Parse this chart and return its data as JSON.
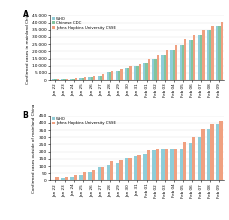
{
  "panel_A": {
    "dates": [
      "Jan 22",
      "Jan 23",
      "Jan 24",
      "Jan 25",
      "Jan 26",
      "Jan 27",
      "Jan 28",
      "Jan 29",
      "Jan 30",
      "Jan 31",
      "Feb 01",
      "Feb 02",
      "Feb 03",
      "Feb 04",
      "Feb 05",
      "Feb 06",
      "Feb 07",
      "Feb 08",
      "Feb 09"
    ],
    "WHO": [
      548,
      643,
      920,
      1406,
      2075,
      2877,
      5578,
      6166,
      8234,
      9927,
      11948,
      14549,
      17391,
      20630,
      24633,
      28018,
      31481,
      34886,
      37558
    ],
    "ChineseCDC": [
      548,
      643,
      920,
      1406,
      2075,
      2877,
      5578,
      6166,
      8234,
      9927,
      11948,
      14549,
      17391,
      20630,
      24633,
      28018,
      31481,
      34886,
      37558
    ],
    "JHU": [
      580,
      845,
      1317,
      1985,
      2798,
      4593,
      6057,
      7783,
      9776,
      11374,
      14557,
      17383,
      20630,
      24553,
      28276,
      31439,
      34876,
      37552,
      40553
    ],
    "ylabel": "Confirmed cases in mainland China",
    "ylim": [
      0,
      45000
    ],
    "yticks": [
      0,
      5000,
      10000,
      15000,
      20000,
      25000,
      30000,
      35000,
      40000,
      45000
    ],
    "label": "A",
    "legend": [
      "WHO",
      "Chinese CDC",
      "Johns Hopkins University CSSE"
    ]
  },
  "panel_B": {
    "dates": [
      "Jan 22",
      "Jan 23",
      "Jan 24",
      "Jan 25",
      "Jan 26",
      "Jan 27",
      "Jan 28",
      "Jan 29",
      "Jan 30",
      "Jan 31",
      "Feb 01",
      "Feb 02",
      "Feb 03",
      "Feb 04",
      "Feb 05",
      "Feb 06",
      "Feb 07",
      "Feb 08",
      "Feb 09"
    ],
    "WHO": [
      3,
      14,
      25,
      40,
      57,
      90,
      105,
      118,
      153,
      171,
      183,
      213,
      216,
      216,
      216,
      263,
      300,
      360,
      395
    ],
    "JHU": [
      27,
      27,
      36,
      56,
      75,
      94,
      132,
      141,
      155,
      178,
      213,
      216,
      216,
      217,
      265,
      302,
      359,
      389,
      413
    ],
    "ylabel": "Confirmed cases outside of mainland China",
    "ylim": [
      0,
      450
    ],
    "yticks": [
      0,
      50,
      100,
      150,
      200,
      250,
      300,
      350,
      400,
      450
    ],
    "label": "B",
    "legend": [
      "WHO",
      "Johns Hopkins University CSSE"
    ]
  },
  "colors": {
    "WHO": "#8ecdd8",
    "ChineseCDC": "#82c49e",
    "JHU": "#f0a080"
  },
  "background": "#ffffff"
}
